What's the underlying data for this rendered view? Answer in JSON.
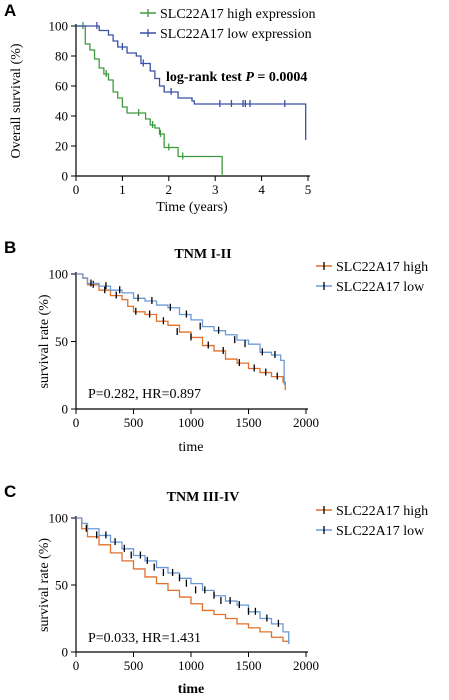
{
  "chart_data": [
    {
      "type": "line",
      "panel": "A",
      "title": "",
      "xlabel": "Time (years)",
      "ylabel": "Overall survival (%)",
      "xlim": [
        0,
        5
      ],
      "ylim": [
        0,
        100
      ],
      "xticks": [
        "0",
        "1",
        "2",
        "3",
        "4",
        "5"
      ],
      "yticks": [
        "0",
        "20",
        "40",
        "60",
        "80",
        "100"
      ],
      "legend_position": "top-right",
      "annotation": "log-rank test ",
      "annotation_italic": "P",
      "annotation_rest": " = 0.0004",
      "series": [
        {
          "name": "SLC22A17 high expression",
          "color": "#3f9a3f",
          "x": [
            0,
            0.2,
            0.3,
            0.4,
            0.5,
            0.6,
            0.7,
            0.8,
            0.9,
            1.0,
            1.1,
            1.3,
            1.5,
            1.6,
            1.7,
            1.8,
            1.9,
            2.2,
            3.15,
            3.15
          ],
          "y": [
            100,
            88,
            84,
            78,
            72,
            68,
            64,
            56,
            52,
            46,
            42,
            42,
            38,
            34,
            32,
            28,
            19,
            13,
            13,
            0
          ],
          "censor_x": [
            0.15,
            0.65,
            1.35,
            1.65,
            1.82,
            2.0,
            2.3
          ],
          "censor_y": [
            100,
            68,
            42,
            34,
            28,
            19,
            13
          ]
        },
        {
          "name": "SLC22A17 low expression",
          "color": "#3a4fa8",
          "x": [
            0,
            0.5,
            0.7,
            0.8,
            0.9,
            1.1,
            1.3,
            1.4,
            1.6,
            1.7,
            1.8,
            1.9,
            2.2,
            2.5,
            2.55,
            4.95,
            4.95
          ],
          "y": [
            100,
            97,
            94,
            90,
            86,
            82,
            80,
            75,
            70,
            65,
            60,
            56,
            52,
            50,
            48,
            48,
            24
          ],
          "censor_x": [
            0.45,
            1.0,
            1.45,
            2.05,
            3.1,
            3.35,
            3.6,
            3.65,
            3.75,
            4.5
          ],
          "censor_y": [
            100,
            86,
            75,
            56,
            48,
            48,
            48,
            48,
            48,
            48
          ]
        }
      ]
    },
    {
      "type": "line",
      "panel": "B",
      "title": "TNM I-II",
      "xlabel": "time",
      "ylabel": "survival rate (%)",
      "xlim": [
        0,
        2000
      ],
      "ylim": [
        0,
        100
      ],
      "xticks": [
        "0",
        "500",
        "1000",
        "1500",
        "2000"
      ],
      "yticks": [
        "0",
        "50",
        "100"
      ],
      "legend_position": "top-right",
      "annotation": "P=0.282, HR=0.897",
      "series": [
        {
          "name": "SLC22A17 high",
          "color": "#e0702a",
          "x": [
            0,
            60,
            100,
            200,
            300,
            400,
            450,
            500,
            600,
            700,
            800,
            900,
            1000,
            1100,
            1200,
            1300,
            1400,
            1500,
            1600,
            1700,
            1800,
            1820,
            1820
          ],
          "y": [
            100,
            97,
            92,
            88,
            84,
            81,
            76,
            72,
            70,
            65,
            62,
            57,
            53,
            47,
            43,
            37,
            34,
            30,
            27,
            24,
            20,
            19,
            14
          ],
          "censor_x": [
            150,
            250,
            350,
            520,
            640,
            760,
            880,
            1000,
            1150,
            1280,
            1420,
            1550,
            1650,
            1750
          ],
          "censor_y": [
            92,
            88,
            84,
            72,
            70,
            65,
            57,
            53,
            47,
            43,
            34,
            30,
            27,
            24
          ]
        },
        {
          "name": "SLC22A17 low",
          "color": "#6a9ad8",
          "x": [
            0,
            60,
            100,
            200,
            300,
            400,
            500,
            600,
            700,
            800,
            900,
            1000,
            1100,
            1200,
            1300,
            1400,
            1500,
            1600,
            1700,
            1780,
            1810,
            1810
          ],
          "y": [
            100,
            97,
            93,
            91,
            88,
            86,
            82,
            80,
            77,
            75,
            70,
            66,
            61,
            58,
            55,
            51,
            48,
            42,
            40,
            36,
            29,
            18
          ],
          "censor_x": [
            130,
            260,
            380,
            540,
            660,
            820,
            960,
            1080,
            1240,
            1380,
            1470,
            1620,
            1730
          ],
          "censor_y": [
            93,
            91,
            88,
            82,
            80,
            75,
            70,
            61,
            58,
            51,
            48,
            42,
            40
          ]
        }
      ]
    },
    {
      "type": "line",
      "panel": "C",
      "title": "TNM III-IV",
      "xlabel": "time",
      "ylabel": "survival rate (%)",
      "xlim": [
        0,
        2000
      ],
      "ylim": [
        0,
        100
      ],
      "xticks": [
        "0",
        "500",
        "1000",
        "1500",
        "2000"
      ],
      "yticks": [
        "0",
        "50",
        "100"
      ],
      "legend_position": "top-right",
      "annotation": "P=0.033, HR=1.431",
      "series": [
        {
          "name": "SLC22A17 high",
          "color": "#e0702a",
          "x": [
            0,
            50,
            100,
            200,
            300,
            400,
            500,
            600,
            700,
            800,
            900,
            1000,
            1100,
            1200,
            1300,
            1400,
            1500,
            1600,
            1700,
            1800,
            1850,
            1850
          ],
          "y": [
            100,
            92,
            86,
            80,
            74,
            68,
            62,
            56,
            51,
            46,
            41,
            36,
            31,
            28,
            25,
            21,
            18,
            15,
            11,
            8,
            7,
            7
          ],
          "censor_x": [],
          "censor_y": []
        },
        {
          "name": "SLC22A17 low",
          "color": "#6a9ad8",
          "x": [
            0,
            50,
            100,
            200,
            300,
            400,
            500,
            600,
            700,
            800,
            900,
            1000,
            1100,
            1200,
            1300,
            1400,
            1500,
            1600,
            1700,
            1800,
            1850,
            1850
          ],
          "y": [
            100,
            96,
            92,
            87,
            82,
            77,
            72,
            68,
            63,
            59,
            55,
            51,
            46,
            42,
            38,
            35,
            30,
            25,
            21,
            15,
            11,
            6
          ],
          "censor_x": [
            90,
            180,
            260,
            340,
            420,
            480,
            560,
            620,
            680,
            760,
            840,
            900,
            960,
            1040,
            1120,
            1200,
            1260,
            1340,
            1420,
            1500,
            1560,
            1660,
            1760
          ],
          "censor_y": [
            92,
            87,
            87,
            82,
            77,
            72,
            72,
            68,
            63,
            59,
            59,
            55,
            51,
            46,
            46,
            42,
            38,
            38,
            35,
            30,
            30,
            25,
            21
          ]
        }
      ]
    }
  ]
}
